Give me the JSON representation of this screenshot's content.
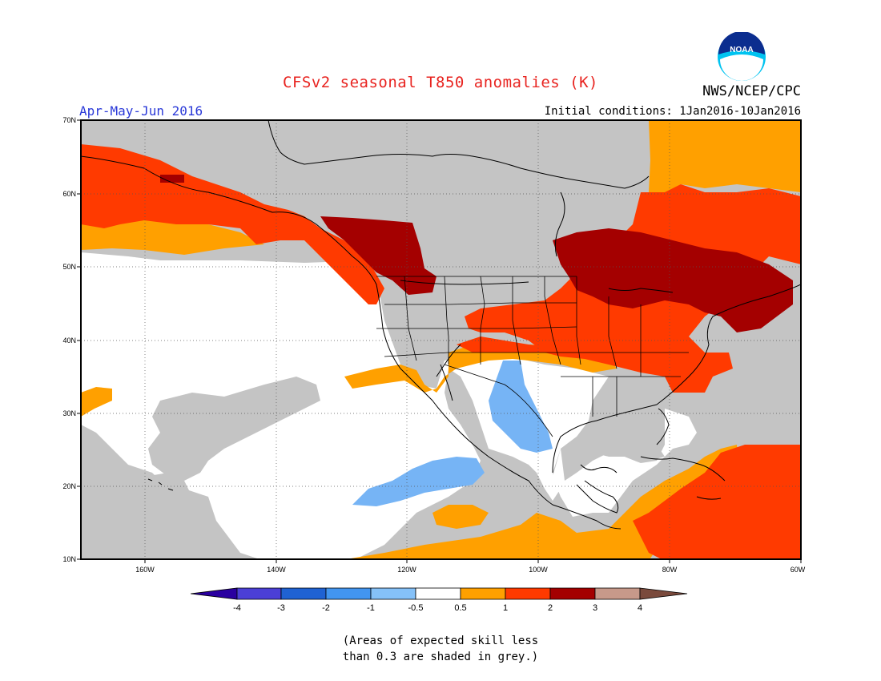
{
  "header": {
    "title": "CFSv2 seasonal T850 anomalies (K)",
    "agency": "NWS/NCEP/CPC",
    "period": "Apr-May-Jun 2016",
    "initial_conditions": "Initial conditions: 1Jan2016-10Jan2016",
    "logo_text": "NOAA"
  },
  "map": {
    "lat_labels": [
      "70N",
      "60N",
      "50N",
      "40N",
      "30N",
      "20N",
      "10N"
    ],
    "lon_labels": [
      "160W",
      "140W",
      "120W",
      "100W",
      "80W",
      "60W"
    ],
    "colors": {
      "grey": "#c4c4c4",
      "lightorange": "#ffa000",
      "orange": "#ff3a00",
      "darkred": "#a40000",
      "lightblue": "#76b4f5",
      "white": "#ffffff"
    }
  },
  "colorbar": {
    "labels": [
      "-4",
      "-3",
      "-2",
      "-1",
      "-0.5",
      "0.5",
      "1",
      "2",
      "3",
      "4"
    ],
    "colors": [
      "#2a00a0",
      "#4b3fd6",
      "#1f62d3",
      "#4295f0",
      "#85c1f8",
      "#ffffff",
      "#ffa000",
      "#ff3a00",
      "#a40000",
      "#c7998a",
      "#7a4a3c"
    ]
  },
  "note": {
    "line1": "(Areas of expected skill less",
    "line2": "than 0.3 are shaded in grey.)"
  }
}
